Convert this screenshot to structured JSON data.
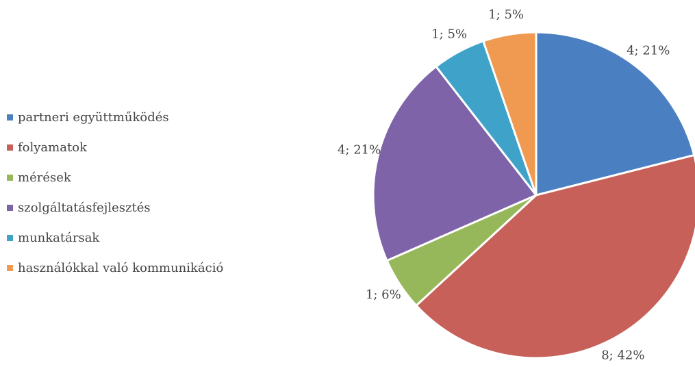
{
  "chart_data": {
    "type": "pie",
    "categories": [
      "partneri együttműködés",
      "folyamatok",
      "mérések",
      "szolgáltatásfejlesztés",
      "munkatársak",
      "használókkal való kommunikáció"
    ],
    "values": [
      4,
      8,
      1,
      4,
      1,
      1
    ],
    "value_labels": [
      "4; 21%",
      "8; 42%",
      "1; 6%",
      "4; 21%",
      "1; 5%",
      "1; 5%"
    ],
    "colors": [
      "#4a7fc1",
      "#c8605a",
      "#97b85a",
      "#7e63a8",
      "#3fa3c9",
      "#ef9a50"
    ],
    "legend": "left"
  }
}
